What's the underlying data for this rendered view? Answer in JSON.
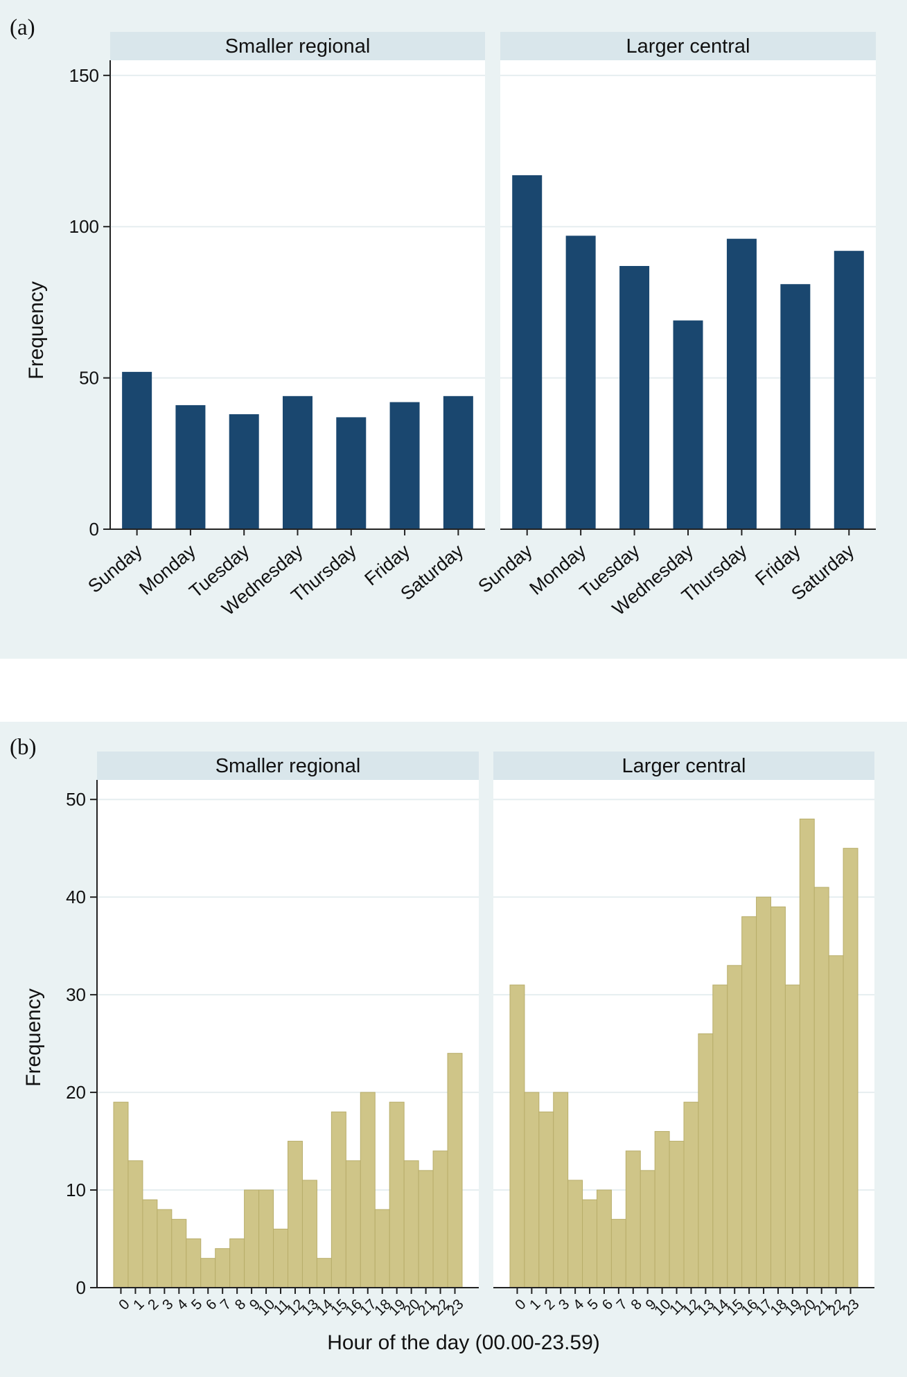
{
  "colors": {
    "outer_background": "#eaf2f3",
    "strip_background": "#d9e6eb",
    "plot_background": "#ffffff",
    "gridline": "#e6eef0",
    "bar_navy": "#1a476f",
    "bar_khaki": "#cfc588",
    "bar_khaki_edge": "#b8ad6a"
  },
  "chart_data": [
    {
      "type": "bar",
      "panel_label": "(a)",
      "ylabel": "Frequency",
      "xlabel": "",
      "ylim": [
        0,
        155
      ],
      "yticks": [
        0,
        50,
        100,
        150
      ],
      "grid": true,
      "categories": [
        "Sunday",
        "Monday",
        "Tuesday",
        "Wednesday",
        "Thursday",
        "Friday",
        "Saturday"
      ],
      "facets": [
        {
          "name": "Smaller regional",
          "values": [
            52,
            41,
            38,
            44,
            37,
            42,
            44
          ]
        },
        {
          "name": "Larger central",
          "values": [
            117,
            97,
            87,
            69,
            96,
            81,
            92
          ]
        }
      ]
    },
    {
      "type": "bar",
      "panel_label": "(b)",
      "ylabel": "Frequency",
      "xlabel": "Hour of the day (00.00-23.59)",
      "ylim": [
        0,
        52
      ],
      "yticks": [
        0,
        10,
        20,
        30,
        40,
        50
      ],
      "grid": true,
      "categories": [
        "0",
        "1",
        "2",
        "3",
        "4",
        "5",
        "6",
        "7",
        "8",
        "9",
        "10",
        "11",
        "12",
        "13",
        "14",
        "15",
        "16",
        "17",
        "18",
        "19",
        "20",
        "21",
        "22",
        "23"
      ],
      "facets": [
        {
          "name": "Smaller regional",
          "values": [
            19,
            13,
            9,
            8,
            7,
            5,
            3,
            4,
            5,
            10,
            10,
            6,
            15,
            11,
            3,
            18,
            13,
            20,
            8,
            19,
            13,
            12,
            14,
            24
          ]
        },
        {
          "name": "Larger central",
          "values": [
            31,
            20,
            18,
            20,
            11,
            9,
            10,
            7,
            14,
            12,
            16,
            15,
            19,
            26,
            31,
            33,
            38,
            40,
            39,
            31,
            48,
            41,
            34,
            45
          ]
        }
      ]
    }
  ]
}
